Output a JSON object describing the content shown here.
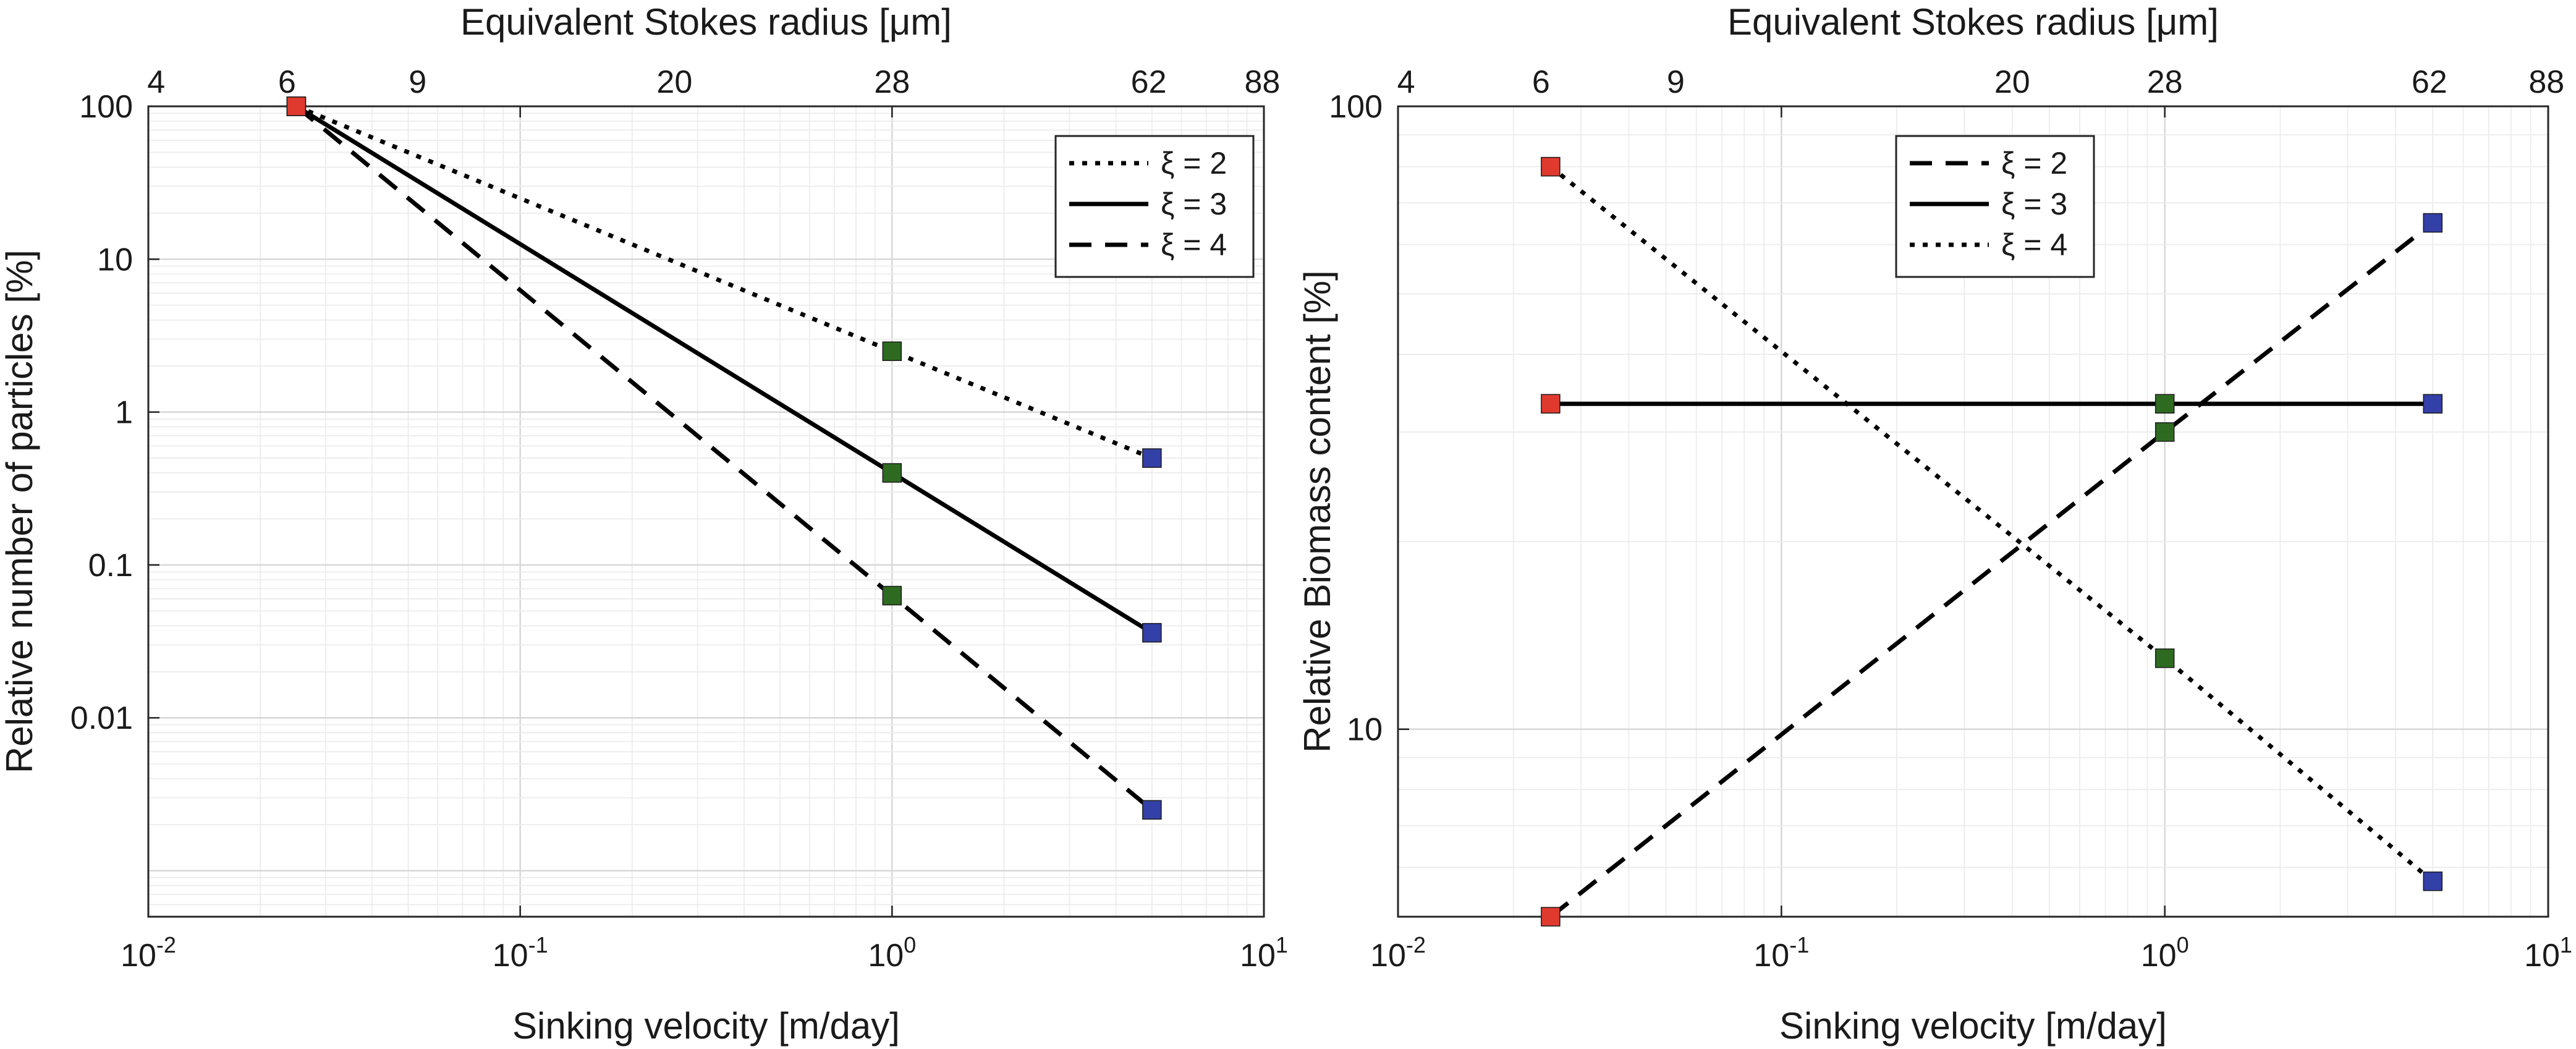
{
  "chart_data": [
    {
      "type": "line",
      "title": "",
      "xlabel": "Sinking velocity [m/day]",
      "ylabel": "Relative number of particles [%]",
      "x2label": "Equivalent Stokes radius [μm]",
      "xscale": "log",
      "yscale": "log",
      "xlim": [
        0.01,
        10
      ],
      "ylim": [
        0.0005,
        100
      ],
      "grid": true,
      "legend_position": "top-right",
      "x_ticks": [
        {
          "value": 0.01,
          "base": "10",
          "exp": "-2"
        },
        {
          "value": 0.1,
          "base": "10",
          "exp": "-1"
        },
        {
          "value": 1,
          "base": "10",
          "exp": "0"
        },
        {
          "value": 10,
          "base": "10",
          "exp": "1"
        }
      ],
      "y_ticks": [
        {
          "value": 0.01,
          "label": "0.01"
        },
        {
          "value": 0.1,
          "label": "0.1"
        },
        {
          "value": 1,
          "label": "1"
        },
        {
          "value": 10,
          "label": "10"
        },
        {
          "value": 100,
          "label": "100"
        }
      ],
      "x2_ticks": [
        {
          "value": 0.0105,
          "label": "4"
        },
        {
          "value": 0.0236,
          "label": "6"
        },
        {
          "value": 0.053,
          "label": "9"
        },
        {
          "value": 0.26,
          "label": "20"
        },
        {
          "value": 1.0,
          "label": "28"
        },
        {
          "value": 4.9,
          "label": "62"
        },
        {
          "value": 9.9,
          "label": "88"
        }
      ],
      "point_colors": [
        "#e03a2f",
        "#2e6b20",
        "#3340a8"
      ],
      "series": [
        {
          "name": "ξ = 2",
          "dash": "dotted",
          "x": [
            0.025,
            1.0,
            5.0
          ],
          "y": [
            100,
            2.5,
            0.5
          ]
        },
        {
          "name": "ξ = 3",
          "dash": "solid",
          "x": [
            0.025,
            1.0,
            5.0
          ],
          "y": [
            100,
            0.4,
            0.036
          ]
        },
        {
          "name": "ξ = 4",
          "dash": "dashed",
          "x": [
            0.025,
            1.0,
            5.0
          ],
          "y": [
            100,
            0.063,
            0.0025
          ]
        }
      ]
    },
    {
      "type": "line",
      "title": "",
      "xlabel": "Sinking velocity [m/day]",
      "ylabel": "Relative Biomass content [%]",
      "x2label": "Equivalent Stokes radius [μm]",
      "xscale": "log",
      "yscale": "log",
      "xlim": [
        0.01,
        10
      ],
      "ylim": [
        5,
        100
      ],
      "grid": true,
      "legend_position": "top-center",
      "x_ticks": [
        {
          "value": 0.01,
          "base": "10",
          "exp": "-2"
        },
        {
          "value": 0.1,
          "base": "10",
          "exp": "-1"
        },
        {
          "value": 1,
          "base": "10",
          "exp": "0"
        },
        {
          "value": 10,
          "base": "10",
          "exp": "1"
        }
      ],
      "y_ticks": [
        {
          "value": 10,
          "label": "10"
        },
        {
          "value": 100,
          "label": "100"
        }
      ],
      "x2_ticks": [
        {
          "value": 0.0105,
          "label": "4"
        },
        {
          "value": 0.0236,
          "label": "6"
        },
        {
          "value": 0.053,
          "label": "9"
        },
        {
          "value": 0.4,
          "label": "20"
        },
        {
          "value": 1.0,
          "label": "28"
        },
        {
          "value": 4.9,
          "label": "62"
        },
        {
          "value": 9.9,
          "label": "88"
        }
      ],
      "point_colors": [
        "#e03a2f",
        "#2e6b20",
        "#3340a8"
      ],
      "series": [
        {
          "name": "ξ = 2",
          "dash": "dashed",
          "x": [
            0.025,
            1.0,
            5.0
          ],
          "y": [
            5.0,
            30.0,
            65.0
          ]
        },
        {
          "name": "ξ = 3",
          "dash": "solid",
          "x": [
            0.025,
            1.0,
            5.0
          ],
          "y": [
            33.3,
            33.3,
            33.3
          ]
        },
        {
          "name": "ξ = 4",
          "dash": "dotted",
          "x": [
            0.025,
            1.0,
            5.0
          ],
          "y": [
            80.0,
            13.0,
            5.7
          ]
        }
      ]
    }
  ]
}
